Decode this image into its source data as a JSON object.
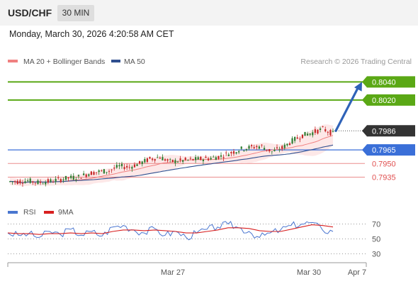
{
  "header": {
    "symbol": "USD/CHF",
    "timeframe": "30 MIN"
  },
  "datetime": "Monday, March 30, 2026 4:20:58 AM CET",
  "legend": {
    "ma20_label": "MA 20 + Bollinger Bands",
    "ma50_label": "MA 50",
    "ma20_color": "#f08080",
    "ma50_color": "#2f4f8f",
    "credit": "Research © 2026 Trading Central"
  },
  "colors": {
    "up_candle": "#2e7d32",
    "down_candle": "#c62828",
    "target_green": "#5aa815",
    "pivot_blue": "#3a6fd8",
    "support_red": "#e05050",
    "current_dark": "#333333",
    "arrow_blue": "#2f62b8",
    "rsi": "#4a76d0",
    "rsi_ma": "#d82020"
  },
  "chart_data": [
    {
      "type": "candlestick",
      "title": "",
      "x_labels": [
        "Mar 27",
        "Mar 30",
        "Apr 7"
      ],
      "price_range": [
        0.7915,
        0.8052
      ],
      "levels": [
        {
          "value": "0.8040",
          "kind": "target"
        },
        {
          "value": "0.8020",
          "kind": "target"
        },
        {
          "value": "0.7986",
          "kind": "current"
        },
        {
          "value": "0.7965",
          "kind": "pivot"
        },
        {
          "value": "0.7950",
          "kind": "support"
        },
        {
          "value": "0.7935",
          "kind": "support"
        }
      ],
      "close_approx": [
        0.793,
        0.7931,
        0.7929,
        0.793,
        0.7932,
        0.7934,
        0.7935,
        0.7939,
        0.7941,
        0.7942,
        0.7947,
        0.7946,
        0.795,
        0.7955,
        0.7957,
        0.7952,
        0.7953,
        0.7954,
        0.7955,
        0.7956,
        0.7958,
        0.7962,
        0.7966,
        0.7968,
        0.7969,
        0.7963,
        0.7967,
        0.7975,
        0.7981,
        0.7984,
        0.7988,
        0.7983
      ],
      "projection": {
        "from": 0.7986,
        "to": 0.804
      }
    },
    {
      "type": "line",
      "title": "",
      "series": [
        {
          "name": "RSI",
          "values": [
            58,
            55,
            57,
            52,
            60,
            56,
            63,
            55,
            60,
            54,
            66,
            68,
            62,
            58,
            64,
            55,
            60,
            52,
            58,
            63,
            66,
            70,
            65,
            60,
            52,
            58,
            62,
            68,
            70,
            72,
            62,
            60
          ]
        },
        {
          "name": "9MA",
          "values": [
            58,
            57,
            57,
            56,
            57,
            57,
            58,
            57,
            58,
            57,
            60,
            62,
            62,
            61,
            62,
            61,
            60,
            58,
            58,
            60,
            62,
            65,
            65,
            64,
            61,
            60,
            60,
            63,
            66,
            69,
            68,
            66
          ]
        }
      ],
      "y_ticks": [
        "70",
        "50",
        "30"
      ],
      "ylim": [
        20,
        80
      ]
    }
  ]
}
